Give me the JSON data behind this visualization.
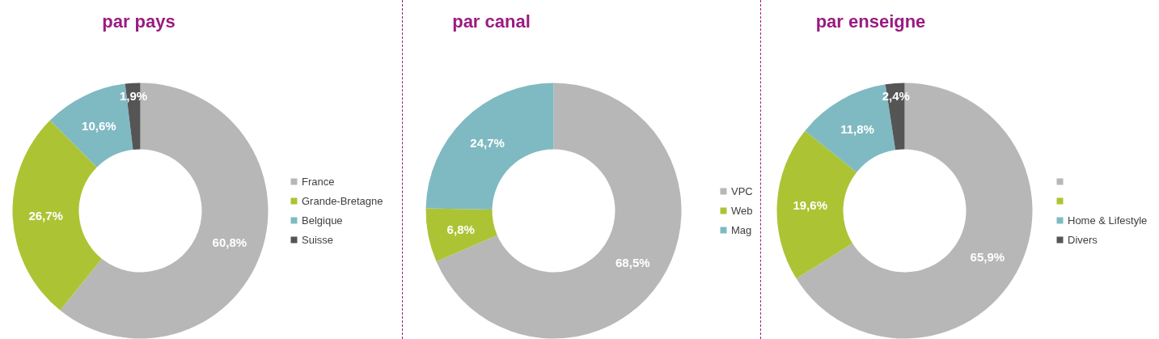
{
  "chart_data": [
    {
      "type": "donut",
      "title": "par pays",
      "categories": [
        "France",
        "Grande-Bretagne",
        "Belgique",
        "Suisse"
      ],
      "values": [
        60.8,
        26.7,
        10.6,
        1.9
      ],
      "colors": [
        "#b7b7b7",
        "#acc434",
        "#7fbac2",
        "#555555"
      ],
      "value_labels": [
        "60,8%",
        "26,7%",
        "10,6%",
        "1,9%"
      ],
      "legend": "right"
    },
    {
      "type": "donut",
      "title": "par canal",
      "categories": [
        "VPC",
        "Web",
        "Mag"
      ],
      "values": [
        68.5,
        6.8,
        24.7
      ],
      "colors": [
        "#b7b7b7",
        "#acc434",
        "#7fbac2"
      ],
      "value_labels": [
        "68,5%",
        "6,8%",
        "24,7%"
      ],
      "legend": "right"
    },
    {
      "type": "donut",
      "title": "par enseigne",
      "categories": [
        null,
        null,
        "Home & Lifestyle",
        "Divers"
      ],
      "values": [
        65.9,
        19.6,
        11.8,
        2.4
      ],
      "colors": [
        "#b7b7b7",
        "#acc434",
        "#7fbac2",
        "#555555"
      ],
      "value_labels": [
        "65,9%",
        "19,6%",
        "11,8%",
        "2,4%"
      ],
      "legend": "right"
    }
  ]
}
